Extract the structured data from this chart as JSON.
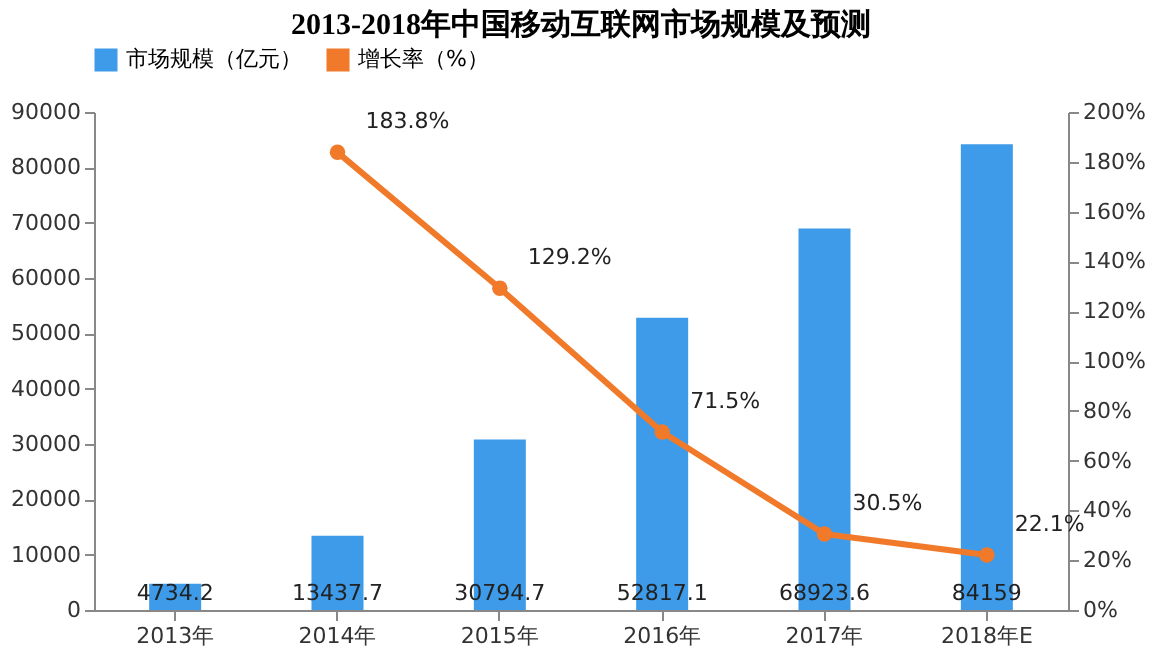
{
  "chart_data": {
    "type": "bar",
    "title": "2013-2018年中国移动互联网市场规模及预测",
    "categories": [
      "2013年",
      "2014年",
      "2015年",
      "2016年",
      "2017年",
      "2018年E"
    ],
    "series": [
      {
        "name": "市场规模（亿元）",
        "color": "#3d9be9",
        "values": [
          4734.2,
          13437.7,
          30794.7,
          52817.1,
          68923.6,
          84159
        ],
        "value_labels": [
          "4734.2",
          "13437.7",
          "30794.7",
          "52817.1",
          "68923.6",
          "84159"
        ]
      },
      {
        "name": "增长率（%）",
        "type": "line",
        "axis": "y2",
        "color": "#f07a2a",
        "marker": "circle",
        "values": [
          null,
          183.8,
          129.2,
          71.5,
          30.5,
          22.1
        ],
        "value_labels": [
          null,
          "183.8%",
          "129.2%",
          "71.5%",
          "30.5%",
          "22.1%"
        ]
      }
    ],
    "ylim": [
      0,
      90000
    ],
    "yticks": [
      0,
      10000,
      20000,
      30000,
      40000,
      50000,
      60000,
      70000,
      80000,
      90000
    ],
    "y2lim": [
      0,
      200
    ],
    "y2ticks": [
      {
        "value": 0,
        "label": "0%"
      },
      {
        "value": 20,
        "label": "20%"
      },
      {
        "value": 40,
        "label": "40%"
      },
      {
        "value": 60,
        "label": "60%"
      },
      {
        "value": 80,
        "label": "80%"
      },
      {
        "value": 100,
        "label": "100%"
      },
      {
        "value": 120,
        "label": "120%"
      },
      {
        "value": 140,
        "label": "140%"
      },
      {
        "value": 160,
        "label": "160%"
      },
      {
        "value": 180,
        "label": "180%"
      },
      {
        "value": 200,
        "label": "200%"
      }
    ],
    "grid": false,
    "legend": "top"
  }
}
